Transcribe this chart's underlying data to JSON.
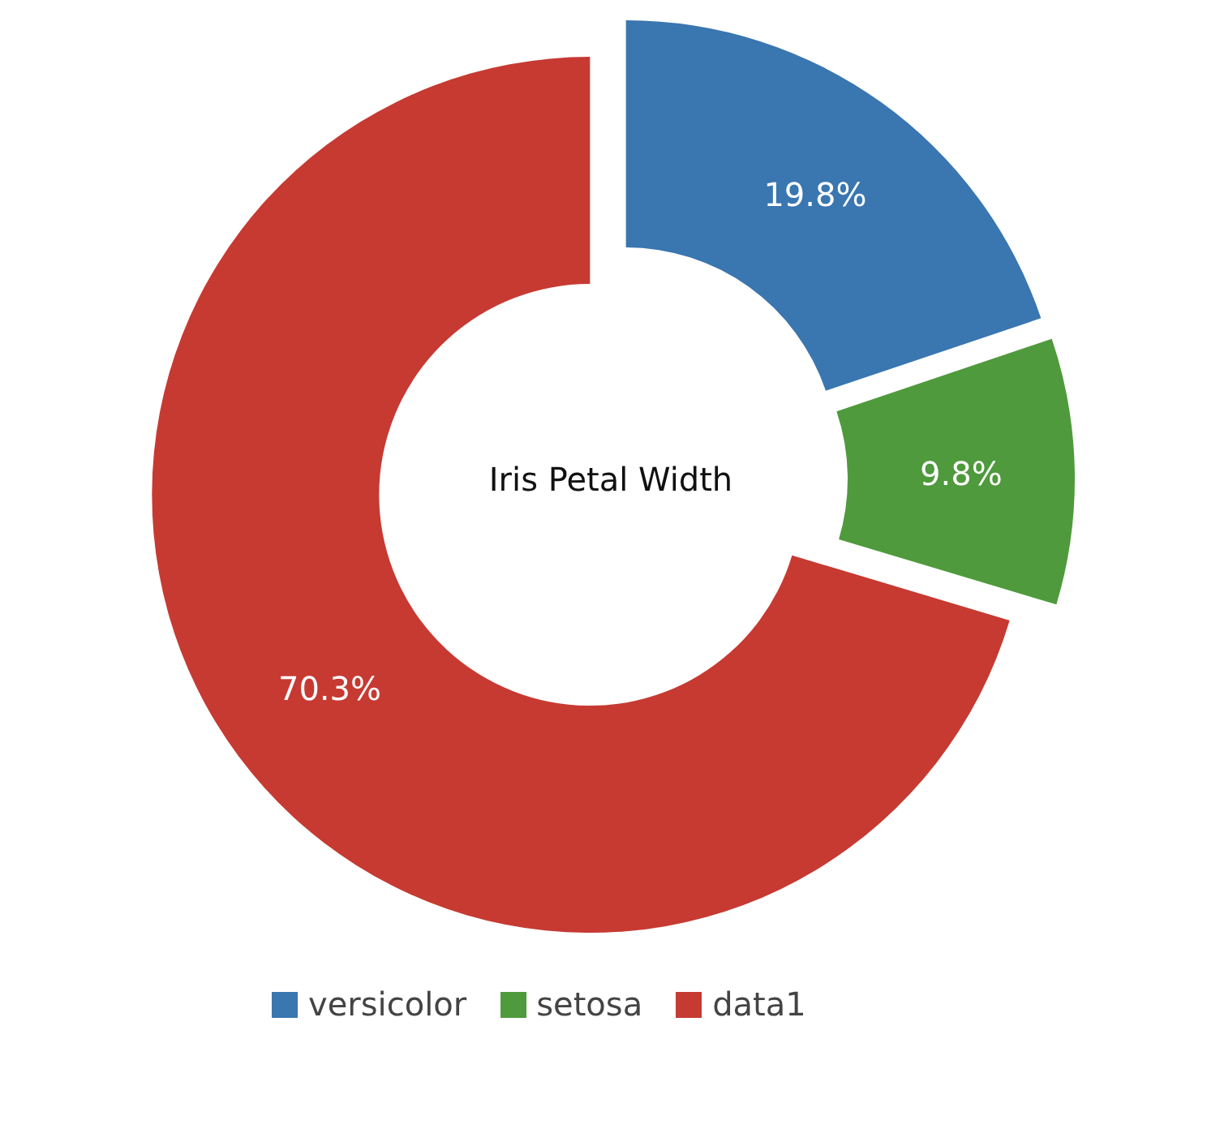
{
  "chart_data": {
    "type": "donut",
    "title": "Iris Petal Width",
    "categories": [
      "versicolor",
      "setosa",
      "data1"
    ],
    "values": [
      19.8,
      9.8,
      70.3
    ],
    "colors": [
      "#3a76b0",
      "#4f9a3c",
      "#c63a32"
    ],
    "value_labels": [
      "19.8%",
      "9.8%",
      "70.3%"
    ],
    "legend": "bottom"
  }
}
